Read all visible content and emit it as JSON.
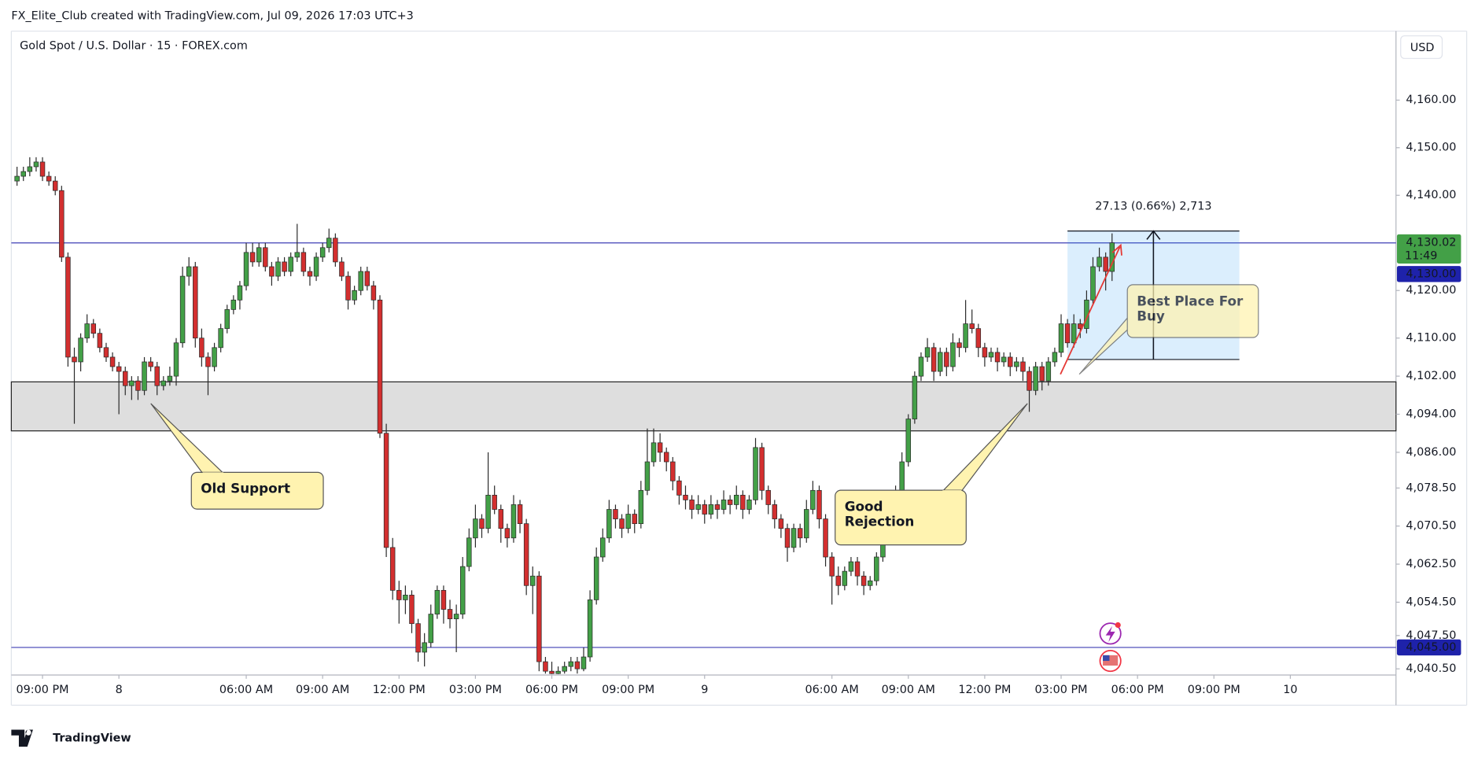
{
  "header": "FX_Elite_Club created with TradingView.com, Jul 09, 2026 17:03 UTC+3",
  "brand": "TradingView",
  "chart_data": {
    "type": "candlestick",
    "title": "Gold Spot / U.S. Dollar · 15 · FOREX.com",
    "currency": "USD",
    "up_color": "#43a047",
    "down_color": "#d32f2f",
    "ylim": [
      4039.2,
      4174.5
    ],
    "yticks": [
      {
        "value": 4160,
        "label": "4,160.00"
      },
      {
        "value": 4150,
        "label": "4,150.00"
      },
      {
        "value": 4140,
        "label": "4,140.00"
      },
      {
        "value": 4120,
        "label": "4,120.00"
      },
      {
        "value": 4110,
        "label": "4,110.00"
      },
      {
        "value": 4102,
        "label": "4,102.00"
      },
      {
        "value": 4094,
        "label": "4,094.00"
      },
      {
        "value": 4086,
        "label": "4,086.00"
      },
      {
        "value": 4078.5,
        "label": "4,078.50"
      },
      {
        "value": 4070.5,
        "label": "4,070.50"
      },
      {
        "value": 4062.5,
        "label": "4,062.50"
      },
      {
        "value": 4054.5,
        "label": "4,054.50"
      },
      {
        "value": 4047.5,
        "label": "4,047.50"
      },
      {
        "value": 4040.5,
        "label": "4,040.50"
      }
    ],
    "xlim": [
      -0.9,
      216.6
    ],
    "xticks": [
      {
        "value": 4,
        "label": "09:00 PM"
      },
      {
        "value": 16,
        "label": "8"
      },
      {
        "value": 36,
        "label": "06:00 AM"
      },
      {
        "value": 48,
        "label": "09:00 AM"
      },
      {
        "value": 60,
        "label": "12:00 PM"
      },
      {
        "value": 72,
        "label": "03:00 PM"
      },
      {
        "value": 84,
        "label": "06:00 PM"
      },
      {
        "value": 96,
        "label": "09:00 PM"
      },
      {
        "value": 108,
        "label": "9"
      },
      {
        "value": 128,
        "label": "06:00 AM"
      },
      {
        "value": 140,
        "label": "09:00 AM"
      },
      {
        "value": 152,
        "label": "12:00 PM"
      },
      {
        "value": 164,
        "label": "03:00 PM"
      },
      {
        "value": 176,
        "label": "06:00 PM"
      },
      {
        "value": 188,
        "label": "09:00 PM"
      },
      {
        "value": 200,
        "label": "10"
      }
    ],
    "current": {
      "value": 4130.02,
      "label": "4,130.02",
      "countdown": "11:49",
      "color": "#43a047"
    },
    "hlines": [
      {
        "value": 4130,
        "label": "4,130.00",
        "color": "#3f3fb5"
      },
      {
        "value": 4045,
        "label": "4,045.00",
        "color": "#3f3fb5"
      }
    ],
    "zone": [
      4090.5,
      4100.8
    ],
    "position": {
      "x": [
        165,
        192
      ],
      "top": 4132.5,
      "bottom": 4105.5,
      "label": "27.13 (0.66%) 2,713"
    },
    "annotations": [
      "Old Support",
      "Good Rejection",
      "Best Place For Buy"
    ],
    "candles": [
      [
        4143,
        4146,
        4142,
        4144
      ],
      [
        4144,
        4146,
        4143,
        4145
      ],
      [
        4145,
        4148,
        4144,
        4146
      ],
      [
        4146,
        4148,
        4145,
        4147
      ],
      [
        4147,
        4148,
        4143,
        4144
      ],
      [
        4144,
        4145,
        4142,
        4143
      ],
      [
        4143,
        4144,
        4140,
        4141
      ],
      [
        4141,
        4142,
        4126,
        4127
      ],
      [
        4127,
        4128,
        4104,
        4106
      ],
      [
        4106,
        4108,
        4092,
        4105
      ],
      [
        4105,
        4111,
        4103,
        4110
      ],
      [
        4110,
        4115,
        4109,
        4113
      ],
      [
        4113,
        4114,
        4110,
        4111
      ],
      [
        4111,
        4112,
        4107,
        4108
      ],
      [
        4108,
        4109,
        4105,
        4106
      ],
      [
        4106,
        4107,
        4103,
        4104
      ],
      [
        4104,
        4105,
        4094,
        4103
      ],
      [
        4103,
        4104,
        4098,
        4100
      ],
      [
        4100,
        4102,
        4097,
        4101
      ],
      [
        4101,
        4102,
        4097,
        4099
      ],
      [
        4099,
        4106,
        4098,
        4105
      ],
      [
        4105,
        4106,
        4103,
        4104
      ],
      [
        4104,
        4105,
        4098,
        4100
      ],
      [
        4100,
        4102,
        4099,
        4101
      ],
      [
        4101,
        4104,
        4100,
        4102
      ],
      [
        4102,
        4110,
        4100,
        4109
      ],
      [
        4109,
        4125,
        4108,
        4123
      ],
      [
        4123,
        4127,
        4121,
        4125
      ],
      [
        4125,
        4126,
        4108,
        4110
      ],
      [
        4110,
        4112,
        4104,
        4106
      ],
      [
        4106,
        4107,
        4098,
        4104
      ],
      [
        4104,
        4109,
        4103,
        4108
      ],
      [
        4108,
        4113,
        4107,
        4112
      ],
      [
        4112,
        4117,
        4111,
        4116
      ],
      [
        4116,
        4119,
        4115,
        4118
      ],
      [
        4118,
        4122,
        4116,
        4121
      ],
      [
        4121,
        4130,
        4120,
        4128
      ],
      [
        4128,
        4130,
        4125,
        4126
      ],
      [
        4126,
        4130,
        4125,
        4129
      ],
      [
        4129,
        4130,
        4124,
        4125
      ],
      [
        4125,
        4126,
        4121,
        4123
      ],
      [
        4123,
        4127,
        4122,
        4126
      ],
      [
        4126,
        4127,
        4123,
        4124
      ],
      [
        4124,
        4128,
        4123,
        4127
      ],
      [
        4127,
        4134,
        4126,
        4128
      ],
      [
        4128,
        4129,
        4123,
        4124
      ],
      [
        4124,
        4125,
        4121,
        4123
      ],
      [
        4123,
        4128,
        4122,
        4127
      ],
      [
        4127,
        4130,
        4126,
        4129
      ],
      [
        4129,
        4133,
        4128,
        4131
      ],
      [
        4131,
        4132,
        4125,
        4126
      ],
      [
        4126,
        4127,
        4122,
        4123
      ],
      [
        4123,
        4124,
        4116,
        4118
      ],
      [
        4118,
        4121,
        4117,
        4120
      ],
      [
        4120,
        4125,
        4119,
        4124
      ],
      [
        4124,
        4125,
        4120,
        4121
      ],
      [
        4121,
        4122,
        4116,
        4118
      ],
      [
        4118,
        4119,
        4089,
        4090
      ],
      [
        4090,
        4092,
        4064,
        4066
      ],
      [
        4066,
        4068,
        4055,
        4057
      ],
      [
        4057,
        4059,
        4050,
        4055
      ],
      [
        4055,
        4058,
        4052,
        4056
      ],
      [
        4056,
        4057,
        4048,
        4050
      ],
      [
        4050,
        4051,
        4042,
        4044
      ],
      [
        4044,
        4048,
        4041,
        4046
      ],
      [
        4046,
        4054,
        4045,
        4052
      ],
      [
        4052,
        4058,
        4051,
        4057
      ],
      [
        4057,
        4058,
        4050,
        4053
      ],
      [
        4053,
        4055,
        4049,
        4051
      ],
      [
        4051,
        4054,
        4044,
        4052
      ],
      [
        4052,
        4064,
        4051,
        4062
      ],
      [
        4062,
        4070,
        4061,
        4068
      ],
      [
        4068,
        4075,
        4066,
        4072
      ],
      [
        4072,
        4073,
        4068,
        4070
      ],
      [
        4070,
        4086,
        4069,
        4077
      ],
      [
        4077,
        4079,
        4073,
        4074
      ],
      [
        4074,
        4075,
        4067,
        4070
      ],
      [
        4070,
        4071,
        4066,
        4068
      ],
      [
        4068,
        4077,
        4067,
        4075
      ],
      [
        4075,
        4076,
        4069,
        4071
      ],
      [
        4071,
        4072,
        4056,
        4058
      ],
      [
        4058,
        4062,
        4052,
        4060
      ],
      [
        4060,
        4061,
        4040,
        4042
      ],
      [
        4042,
        4043,
        4039.5,
        4040
      ],
      [
        4040,
        4042,
        4039.4,
        4039.5
      ],
      [
        4039.5,
        4041,
        4039.4,
        4040
      ],
      [
        4040,
        4042,
        4039.5,
        4041
      ],
      [
        4041,
        4043,
        4040,
        4042
      ],
      [
        4042,
        4043,
        4039.5,
        4040.5
      ],
      [
        4040.5,
        4045,
        4040,
        4043
      ],
      [
        4043,
        4057,
        4042,
        4055
      ],
      [
        4055,
        4066,
        4054,
        4064
      ],
      [
        4064,
        4070,
        4063,
        4068
      ],
      [
        4068,
        4076,
        4067,
        4074
      ],
      [
        4074,
        4075,
        4070,
        4072
      ],
      [
        4072,
        4073,
        4068,
        4070
      ],
      [
        4070,
        4075,
        4069,
        4073
      ],
      [
        4073,
        4074,
        4069,
        4071
      ],
      [
        4071,
        4080,
        4070,
        4078
      ],
      [
        4078,
        4091,
        4077,
        4084
      ],
      [
        4084,
        4091,
        4083,
        4088
      ],
      [
        4088,
        4090,
        4084,
        4086
      ],
      [
        4086,
        4087,
        4082,
        4084
      ],
      [
        4084,
        4085,
        4078,
        4080
      ],
      [
        4080,
        4081,
        4075,
        4077
      ],
      [
        4077,
        4079,
        4074,
        4076
      ],
      [
        4076,
        4077,
        4072,
        4074
      ],
      [
        4074,
        4077,
        4073,
        4075
      ],
      [
        4075,
        4076,
        4071,
        4073
      ],
      [
        4073,
        4077,
        4072,
        4075
      ],
      [
        4075,
        4076,
        4072,
        4074
      ],
      [
        4074,
        4078,
        4073,
        4076
      ],
      [
        4076,
        4077,
        4073,
        4075
      ],
      [
        4075,
        4079,
        4074,
        4077
      ],
      [
        4077,
        4078,
        4072,
        4074
      ],
      [
        4074,
        4077,
        4073,
        4076
      ],
      [
        4076,
        4089,
        4075,
        4087
      ],
      [
        4087,
        4088,
        4076,
        4078
      ],
      [
        4078,
        4079,
        4073,
        4075
      ],
      [
        4075,
        4076,
        4070,
        4072
      ],
      [
        4072,
        4073,
        4068,
        4070
      ],
      [
        4070,
        4071,
        4063,
        4066
      ],
      [
        4066,
        4071,
        4065,
        4070
      ],
      [
        4070,
        4071,
        4066,
        4068
      ],
      [
        4068,
        4076,
        4067,
        4074
      ],
      [
        4074,
        4080,
        4073,
        4078
      ],
      [
        4078,
        4079,
        4070,
        4072
      ],
      [
        4072,
        4073,
        4062,
        4064
      ],
      [
        4064,
        4065,
        4054,
        4060
      ],
      [
        4060,
        4062,
        4056,
        4058
      ],
      [
        4058,
        4062,
        4057,
        4061
      ],
      [
        4061,
        4064,
        4060,
        4063
      ],
      [
        4063,
        4064,
        4058,
        4060
      ],
      [
        4060,
        4061,
        4056,
        4058
      ],
      [
        4058,
        4060,
        4057,
        4059
      ],
      [
        4059,
        4065,
        4058,
        4064
      ],
      [
        4064,
        4069,
        4063,
        4068
      ],
      [
        4068,
        4072,
        4067,
        4071
      ],
      [
        4071,
        4079,
        4070,
        4078
      ],
      [
        4078,
        4086,
        4077,
        4084
      ],
      [
        4084,
        4094,
        4083,
        4093
      ],
      [
        4093,
        4103,
        4092,
        4102
      ],
      [
        4102,
        4107,
        4101,
        4106
      ],
      [
        4106,
        4110,
        4105,
        4108
      ],
      [
        4108,
        4109,
        4101,
        4103
      ],
      [
        4103,
        4108,
        4102,
        4107
      ],
      [
        4107,
        4108,
        4102,
        4104
      ],
      [
        4104,
        4111,
        4103,
        4109
      ],
      [
        4109,
        4110,
        4106,
        4108
      ],
      [
        4108,
        4118,
        4107,
        4113
      ],
      [
        4113,
        4116,
        4111,
        4112
      ],
      [
        4112,
        4113,
        4106,
        4108
      ],
      [
        4108,
        4109,
        4104,
        4106
      ],
      [
        4106,
        4108,
        4105,
        4107
      ],
      [
        4107,
        4108,
        4103,
        4105
      ],
      [
        4105,
        4107,
        4104,
        4106
      ],
      [
        4106,
        4107,
        4102,
        4104
      ],
      [
        4104,
        4106,
        4103,
        4105
      ],
      [
        4105,
        4106,
        4101,
        4103
      ],
      [
        4103,
        4104,
        4094.5,
        4099
      ],
      [
        4099,
        4105,
        4098,
        4104
      ],
      [
        4104,
        4105,
        4099,
        4101
      ],
      [
        4101,
        4106,
        4100,
        4105
      ],
      [
        4105,
        4108,
        4104,
        4107
      ],
      [
        4107,
        4115,
        4106,
        4113
      ],
      [
        4113,
        4114,
        4108,
        4109
      ],
      [
        4109,
        4115,
        4108,
        4113
      ],
      [
        4113,
        4114,
        4110,
        4112
      ],
      [
        4112,
        4120,
        4111,
        4118
      ],
      [
        4118,
        4127,
        4117,
        4125
      ],
      [
        4125,
        4129,
        4124,
        4127
      ],
      [
        4127,
        4128,
        4120,
        4124
      ],
      [
        4124,
        4132,
        4122,
        4130.02
      ]
    ]
  }
}
